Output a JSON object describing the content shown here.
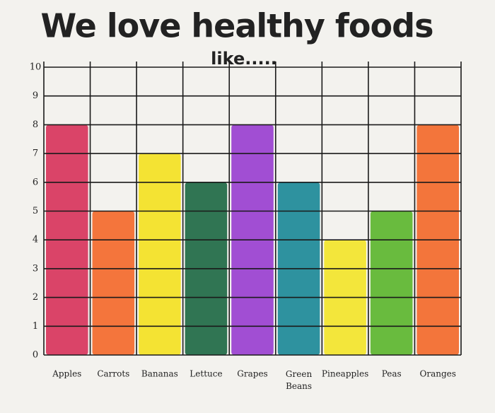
{
  "chart_data": {
    "type": "bar",
    "title": "We love healthy foods",
    "subtitle": "like.....",
    "categories": [
      "Apples",
      "Carrots",
      "Bananas",
      "Lettuce",
      "Grapes",
      "Green Beans",
      "Pineapples",
      "Peas",
      "Oranges"
    ],
    "values": [
      8,
      5,
      7,
      6,
      8,
      6,
      4,
      5,
      8
    ],
    "colors": [
      "#d8355c",
      "#f46a2c",
      "#f4e223",
      "#1f6a45",
      "#9a40d0",
      "#1d8a98",
      "#f3e52b",
      "#5db62f",
      "#f36a2b"
    ],
    "ylim": [
      0,
      10
    ],
    "yticks": [
      0,
      1,
      2,
      3,
      4,
      5,
      6,
      7,
      8,
      9,
      10
    ],
    "grid": true
  }
}
